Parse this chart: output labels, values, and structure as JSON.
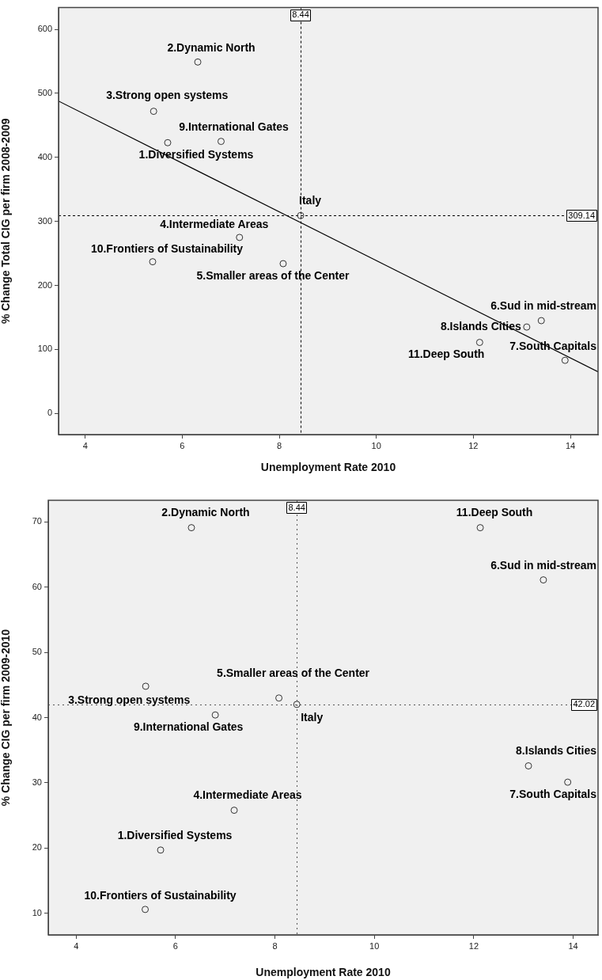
{
  "chart_data": [
    {
      "type": "scatter",
      "xlabel": "Unemployment Rate 2010",
      "ylabel": "% Change Total CIG per firm 2008-2009",
      "xlim": [
        3.45,
        14.57
      ],
      "ylim": [
        -33,
        634
      ],
      "xticks": [
        4,
        6,
        8,
        10,
        12,
        14
      ],
      "yticks": [
        0,
        100,
        200,
        300,
        400,
        500,
        600
      ],
      "grid": false,
      "legend": false,
      "marker": "circle",
      "series": [
        {
          "color": "#333333",
          "x": [
            5.7,
            6.32,
            5.41,
            7.18,
            8.08,
            13.4,
            13.89,
            13.1,
            6.8,
            5.39,
            12.13,
            8.44
          ],
          "values": [
            423,
            549,
            472,
            275,
            234,
            145,
            83,
            135,
            425,
            237,
            111,
            309.14
          ]
        },
        {
          "type": "line",
          "color": "#000000",
          "marker": "none",
          "x": [
            3.45,
            14.57
          ],
          "values": [
            488,
            65
          ]
        }
      ],
      "ref_lines": [
        {
          "axis": "x",
          "value": 8.44,
          "label": "8.44",
          "color": "#000000",
          "line_style": "dashed"
        },
        {
          "axis": "y",
          "value": 309.14,
          "label": "309.14",
          "color": "#000000",
          "line_style": "dashed"
        }
      ],
      "annotations": [
        {
          "text": "1.Diversified Systems",
          "x": 5.7,
          "y": 423
        },
        {
          "text": "2.Dynamic North",
          "x": 6.32,
          "y": 549
        },
        {
          "text": "3.Strong open systems",
          "x": 5.41,
          "y": 472
        },
        {
          "text": "4.Intermediate Areas",
          "x": 7.18,
          "y": 275
        },
        {
          "text": "5.Smaller areas of the Center",
          "x": 8.08,
          "y": 234
        },
        {
          "text": "6.Sud in mid-stream",
          "x": 13.4,
          "y": 145
        },
        {
          "text": "7.South Capitals",
          "x": 13.89,
          "y": 83
        },
        {
          "text": "8.Islands Cities",
          "x": 13.1,
          "y": 135
        },
        {
          "text": "9.International Gates",
          "x": 6.8,
          "y": 425
        },
        {
          "text": "10.Frontiers of Sustainability",
          "x": 5.39,
          "y": 237
        },
        {
          "text": "11.Deep South",
          "x": 12.13,
          "y": 111
        },
        {
          "text": "Italy",
          "x": 8.44,
          "y": 309.14
        }
      ]
    },
    {
      "type": "scatter",
      "xlabel": "Unemployment Rate 2010",
      "ylabel": "% Change CIG per firm 2009-2010",
      "xlim": [
        3.44,
        14.5
      ],
      "ylim": [
        6.7,
        73.3
      ],
      "xticks": [
        4,
        6,
        8,
        10,
        12,
        14
      ],
      "yticks": [
        10,
        20,
        30,
        40,
        50,
        60,
        70
      ],
      "grid": false,
      "legend": false,
      "marker": "circle",
      "series": [
        {
          "color": "#333333",
          "x": [
            5.7,
            6.32,
            5.4,
            7.18,
            8.08,
            13.4,
            13.89,
            13.1,
            6.8,
            5.39,
            12.13,
            8.44
          ],
          "values": [
            19.7,
            69.1,
            44.8,
            25.8,
            43.0,
            61.1,
            30.1,
            32.6,
            40.4,
            10.6,
            69.1,
            42.02
          ]
        }
      ],
      "ref_lines": [
        {
          "axis": "x",
          "value": 8.44,
          "label": "8.44",
          "color": "#555555",
          "line_style": "dotted"
        },
        {
          "axis": "y",
          "value": 42.02,
          "label": "42.02",
          "color": "#555555",
          "line_style": "dotted"
        }
      ],
      "annotations": [
        {
          "text": "1.Diversified Systems",
          "x": 5.7,
          "y": 19.7
        },
        {
          "text": "2.Dynamic North",
          "x": 6.32,
          "y": 69.1
        },
        {
          "text": "3.Strong open systems",
          "x": 5.4,
          "y": 44.8
        },
        {
          "text": "4.Intermediate Areas",
          "x": 7.18,
          "y": 25.8
        },
        {
          "text": "5.Smaller areas of the Center",
          "x": 8.08,
          "y": 43.0
        },
        {
          "text": "6.Sud in mid-stream",
          "x": 13.4,
          "y": 61.1
        },
        {
          "text": "7.South Capitals",
          "x": 13.89,
          "y": 30.1
        },
        {
          "text": "8.Islands Cities",
          "x": 13.1,
          "y": 32.6
        },
        {
          "text": "9.International Gates",
          "x": 6.8,
          "y": 40.4
        },
        {
          "text": "10.Frontiers of Sustainability",
          "x": 5.39,
          "y": 10.6
        },
        {
          "text": "11.Deep South",
          "x": 12.13,
          "y": 69.1
        },
        {
          "text": "Italy",
          "x": 8.44,
          "y": 42.02
        }
      ]
    }
  ]
}
